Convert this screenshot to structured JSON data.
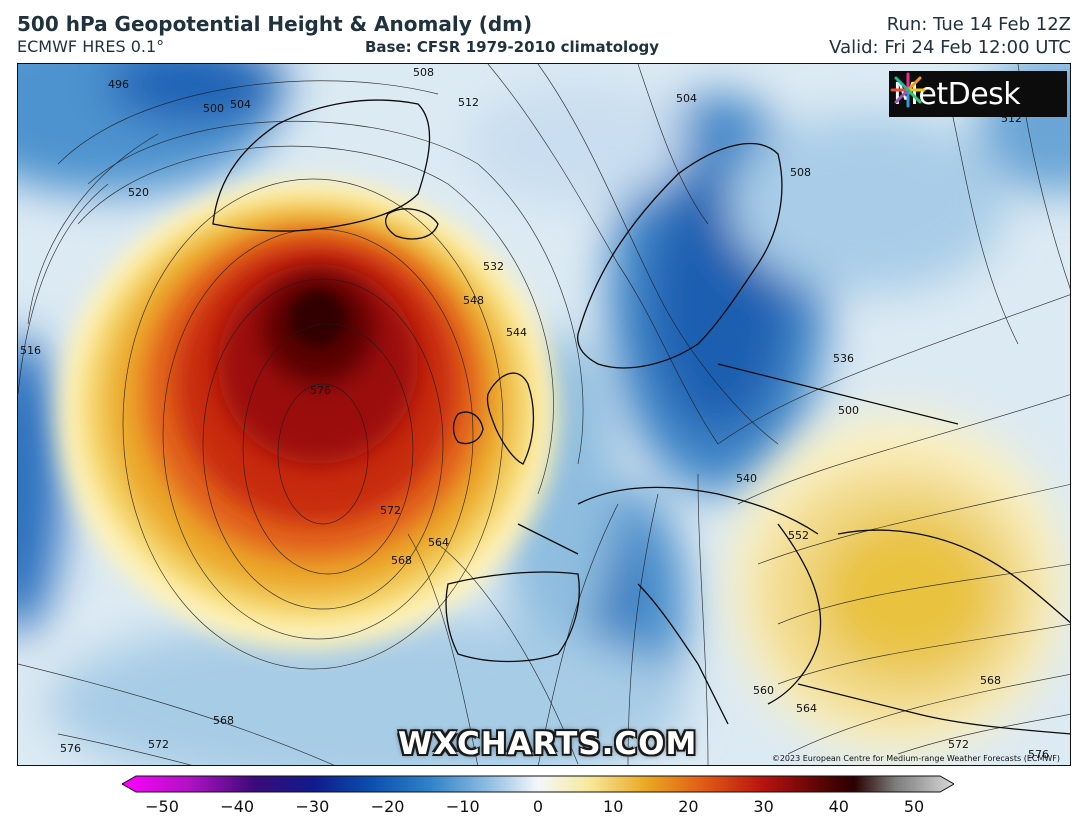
{
  "header": {
    "title": "500 hPa Geopotential Height & Anomaly (dm)",
    "model": "ECMWF HRES 0.1°",
    "base": "Base: CFSR 1979-2010 climatology",
    "run": "Run: Tue 14 Feb 12Z",
    "valid": "Valid: Fri 24 Feb 12:00 UTC"
  },
  "map": {
    "brand_logo": "MetDesk",
    "watermark": "WXCHARTS.COM",
    "copyright": "©2023 European Centre for Medium-range Weather Forecasts (ECMWF)",
    "contour_labels": [
      "508",
      "512",
      "504",
      "500",
      "504",
      "496",
      "520",
      "532",
      "548",
      "544",
      "576",
      "572",
      "568",
      "564",
      "536",
      "540",
      "552",
      "560",
      "564",
      "568",
      "572",
      "576",
      "516",
      "568",
      "572",
      "576",
      "508",
      "512",
      "500"
    ]
  },
  "colorbar": {
    "ticks": [
      "−50",
      "−40",
      "−30",
      "−20",
      "−10",
      "0",
      "10",
      "20",
      "30",
      "40",
      "50"
    ],
    "colors": {
      "min": "#ff00ff",
      "strong_negative": "#2b0a6b",
      "negative": "#0b4fae",
      "weak_negative": "#9cc6e6",
      "zero": "#f4f7fa",
      "weak_positive": "#f5e38a",
      "positive": "#e8a316",
      "strong_positive": "#b20d0d",
      "max": "#3b0000",
      "extreme": "#c8c8c8"
    }
  }
}
